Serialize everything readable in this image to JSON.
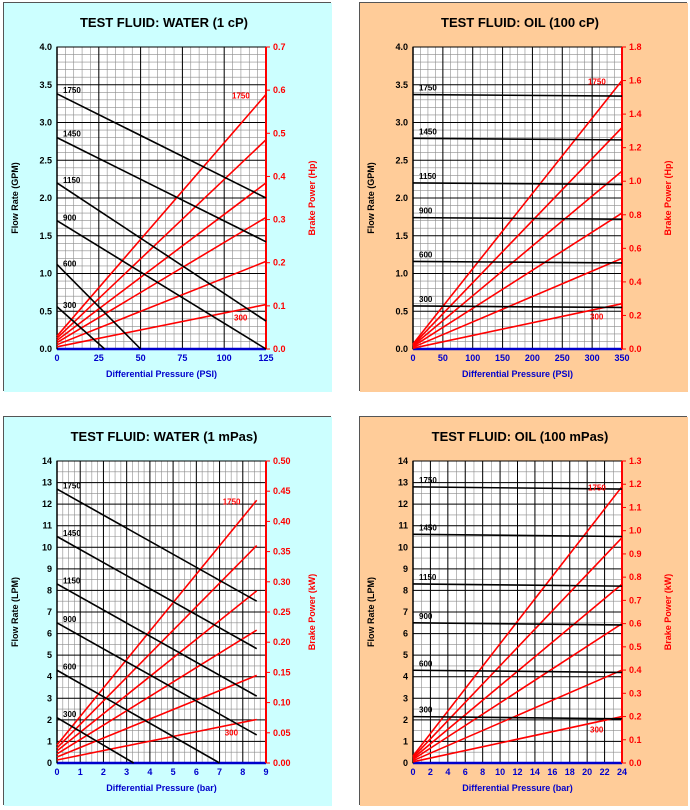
{
  "colors": {
    "water_bg": "#ccffff",
    "oil_bg": "#ffcc99",
    "flow_line": "#000000",
    "power_line": "#ff0000",
    "grid_minor": "#8c8c8c",
    "grid_major": "#000000"
  },
  "chart_data": [
    {
      "type": "line",
      "title": "TEST FLUID:  WATER (1 cP)",
      "xlabel": "Differential Pressure (PSI)",
      "ylabel": "Flow Rate (GPM)",
      "y2label": "Brake Power (Hp)",
      "xlim": [
        0,
        125
      ],
      "xticks": [
        0,
        25,
        50,
        75,
        100,
        125
      ],
      "ylim": [
        0,
        4.0
      ],
      "yticks": [
        "0.0",
        "0.5",
        "1.0",
        "1.5",
        "2.0",
        "2.5",
        "3.0",
        "3.5",
        "4.0"
      ],
      "y2lim": [
        0,
        0.7
      ],
      "y2ticks": [
        "0.0",
        "0.1",
        "0.2",
        "0.3",
        "0.4",
        "0.5",
        "0.6",
        "0.7"
      ],
      "grid": true,
      "background": "water",
      "flow_series": [
        {
          "rpm": "300",
          "points": [
            [
              0,
              0.56
            ],
            [
              28.5,
              0
            ]
          ]
        },
        {
          "rpm": "600",
          "points": [
            [
              0,
              1.12
            ],
            [
              50,
              0
            ]
          ]
        },
        {
          "rpm": "900",
          "points": [
            [
              0,
              1.7
            ],
            [
              125,
              0
            ]
          ]
        },
        {
          "rpm": "1150",
          "points": [
            [
              0,
              2.2
            ],
            [
              125,
              0.37
            ]
          ]
        },
        {
          "rpm": "1450",
          "points": [
            [
              0,
              2.8
            ],
            [
              125,
              1.42
            ]
          ]
        },
        {
          "rpm": "1750",
          "points": [
            [
              0,
              3.38
            ],
            [
              125,
              2.0
            ]
          ]
        }
      ],
      "power_series": [
        {
          "rpm": "300",
          "points": [
            [
              0,
              0.005
            ],
            [
              125,
              0.103
            ]
          ]
        },
        {
          "rpm": "600",
          "points": [
            [
              0,
              0.01
            ],
            [
              125,
              0.203
            ]
          ]
        },
        {
          "rpm": "900",
          "points": [
            [
              0,
              0.015
            ],
            [
              125,
              0.305
            ]
          ]
        },
        {
          "rpm": "1150",
          "points": [
            [
              0,
              0.02
            ],
            [
              125,
              0.385
            ]
          ]
        },
        {
          "rpm": "1450",
          "points": [
            [
              0,
              0.025
            ],
            [
              125,
              0.485
            ]
          ]
        },
        {
          "rpm": "1750",
          "points": [
            [
              0,
              0.03
            ],
            [
              125,
              0.59
            ]
          ]
        }
      ]
    },
    {
      "type": "line",
      "title": "TEST FLUID:  OIL (100 cP)",
      "xlabel": "Differential Pressure (PSI)",
      "ylabel": "Flow Rate (GPM)",
      "y2label": "Brake Power (Hp)",
      "xlim": [
        0,
        350
      ],
      "xticks": [
        0,
        50,
        100,
        150,
        200,
        250,
        300,
        350
      ],
      "ylim": [
        0,
        4.0
      ],
      "yticks": [
        "0.0",
        "0.5",
        "1.0",
        "1.5",
        "2.0",
        "2.5",
        "3.0",
        "3.5",
        "4.0"
      ],
      "y2lim": [
        0,
        1.8
      ],
      "y2ticks": [
        "0.0",
        "0.2",
        "0.4",
        "0.6",
        "0.8",
        "1.0",
        "1.2",
        "1.4",
        "1.6",
        "1.8"
      ],
      "grid": true,
      "background": "oil",
      "flow_series": [
        {
          "rpm": "300",
          "points": [
            [
              0,
              0.57
            ],
            [
              350,
              0.55
            ]
          ]
        },
        {
          "rpm": "600",
          "points": [
            [
              0,
              1.16
            ],
            [
              350,
              1.14
            ]
          ]
        },
        {
          "rpm": "900",
          "points": [
            [
              0,
              1.74
            ],
            [
              350,
              1.72
            ]
          ]
        },
        {
          "rpm": "1150",
          "points": [
            [
              0,
              2.2
            ],
            [
              350,
              2.18
            ]
          ]
        },
        {
          "rpm": "1450",
          "points": [
            [
              0,
              2.79
            ],
            [
              350,
              2.77
            ]
          ]
        },
        {
          "rpm": "1750",
          "points": [
            [
              0,
              3.37
            ],
            [
              350,
              3.35
            ]
          ]
        }
      ],
      "power_series": [
        {
          "rpm": "300",
          "points": [
            [
              0,
              0.005
            ],
            [
              350,
              0.27
            ]
          ]
        },
        {
          "rpm": "600",
          "points": [
            [
              0,
              0.01
            ],
            [
              350,
              0.54
            ]
          ]
        },
        {
          "rpm": "900",
          "points": [
            [
              0,
              0.015
            ],
            [
              350,
              0.81
            ]
          ]
        },
        {
          "rpm": "1150",
          "points": [
            [
              0,
              0.02
            ],
            [
              350,
              1.06
            ]
          ]
        },
        {
          "rpm": "1450",
          "points": [
            [
              0,
              0.025
            ],
            [
              350,
              1.32
            ]
          ]
        },
        {
          "rpm": "1750",
          "points": [
            [
              0,
              0.03
            ],
            [
              350,
              1.6
            ]
          ]
        }
      ]
    },
    {
      "type": "line",
      "title": "TEST FLUID:  WATER (1 mPas)",
      "xlabel": "Differential Pressure (bar)",
      "ylabel": "Flow Rate (LPM)",
      "y2label": "Brake Power (kW)",
      "xlim": [
        0,
        9
      ],
      "xticks": [
        0,
        1,
        2,
        3,
        4,
        5,
        6,
        7,
        8,
        9
      ],
      "ylim": [
        0,
        14
      ],
      "yticks": [
        "0",
        "1",
        "2",
        "3",
        "4",
        "5",
        "6",
        "7",
        "8",
        "9",
        "10",
        "11",
        "12",
        "13",
        "14"
      ],
      "y2lim": [
        0,
        0.5
      ],
      "y2ticks": [
        "0.00",
        "0.05",
        "0.10",
        "0.15",
        "0.20",
        "0.25",
        "0.30",
        "0.35",
        "0.40",
        "0.45",
        "0.50"
      ],
      "grid": true,
      "background": "water",
      "flow_series": [
        {
          "rpm": "300",
          "points": [
            [
              0,
              2.1
            ],
            [
              3.3,
              0
            ]
          ]
        },
        {
          "rpm": "600",
          "points": [
            [
              0,
              4.3
            ],
            [
              7,
              0
            ]
          ]
        },
        {
          "rpm": "900",
          "points": [
            [
              0,
              6.5
            ],
            [
              8.6,
              1.3
            ]
          ]
        },
        {
          "rpm": "1150",
          "points": [
            [
              0,
              8.3
            ],
            [
              8.6,
              3.1
            ]
          ]
        },
        {
          "rpm": "1450",
          "points": [
            [
              0,
              10.5
            ],
            [
              8.6,
              5.3
            ]
          ]
        },
        {
          "rpm": "1750",
          "points": [
            [
              0,
              12.7
            ],
            [
              8.6,
              7.5
            ]
          ]
        }
      ],
      "power_series": [
        {
          "rpm": "300",
          "points": [
            [
              0,
              0.005
            ],
            [
              8.6,
              0.072
            ]
          ]
        },
        {
          "rpm": "600",
          "points": [
            [
              0,
              0.01
            ],
            [
              8.6,
              0.145
            ]
          ]
        },
        {
          "rpm": "900",
          "points": [
            [
              0,
              0.015
            ],
            [
              8.6,
              0.22
            ]
          ]
        },
        {
          "rpm": "1150",
          "points": [
            [
              0,
              0.02
            ],
            [
              8.6,
              0.285
            ]
          ]
        },
        {
          "rpm": "1450",
          "points": [
            [
              0,
              0.025
            ],
            [
              8.6,
              0.36
            ]
          ]
        },
        {
          "rpm": "1750",
          "points": [
            [
              0,
              0.03
            ],
            [
              8.6,
              0.435
            ]
          ]
        }
      ]
    },
    {
      "type": "line",
      "title": "TEST FLUID:  OIL (100 mPas)",
      "xlabel": "Differential Pressure (bar)",
      "ylabel": "Flow Rate (LPM)",
      "y2label": "Brake Power (kW)",
      "xlim": [
        0,
        24
      ],
      "xticks": [
        0,
        2,
        4,
        6,
        8,
        10,
        12,
        14,
        16,
        18,
        20,
        22,
        24
      ],
      "ylim": [
        0,
        14
      ],
      "yticks": [
        "0",
        "1",
        "2",
        "3",
        "4",
        "5",
        "6",
        "7",
        "8",
        "9",
        "10",
        "11",
        "12",
        "13",
        "14"
      ],
      "y2lim": [
        0,
        1.3
      ],
      "y2ticks": [
        "0.0",
        "0.1",
        "0.2",
        "0.3",
        "0.4",
        "0.5",
        "0.6",
        "0.7",
        "0.8",
        "0.9",
        "1.0",
        "1.1",
        "1.2",
        "1.3"
      ],
      "grid": true,
      "background": "oil",
      "flow_series": [
        {
          "rpm": "300",
          "points": [
            [
              0,
              2.15
            ],
            [
              24,
              2.05
            ]
          ]
        },
        {
          "rpm": "600",
          "points": [
            [
              0,
              4.3
            ],
            [
              24,
              4.2
            ]
          ]
        },
        {
          "rpm": "900",
          "points": [
            [
              0,
              6.5
            ],
            [
              24,
              6.4
            ]
          ]
        },
        {
          "rpm": "1150",
          "points": [
            [
              0,
              8.3
            ],
            [
              24,
              8.2
            ]
          ]
        },
        {
          "rpm": "1450",
          "points": [
            [
              0,
              10.6
            ],
            [
              24,
              10.5
            ]
          ]
        },
        {
          "rpm": "1750",
          "points": [
            [
              0,
              12.8
            ],
            [
              24,
              12.7
            ]
          ]
        }
      ],
      "power_series": [
        {
          "rpm": "300",
          "points": [
            [
              0,
              0.005
            ],
            [
              24,
              0.2
            ]
          ]
        },
        {
          "rpm": "600",
          "points": [
            [
              0,
              0.01
            ],
            [
              24,
              0.4
            ]
          ]
        },
        {
          "rpm": "900",
          "points": [
            [
              0,
              0.015
            ],
            [
              24,
              0.6
            ]
          ]
        },
        {
          "rpm": "1150",
          "points": [
            [
              0,
              0.02
            ],
            [
              24,
              0.77
            ]
          ]
        },
        {
          "rpm": "1450",
          "points": [
            [
              0,
              0.025
            ],
            [
              24,
              0.97
            ]
          ]
        },
        {
          "rpm": "1750",
          "points": [
            [
              0,
              0.03
            ],
            [
              24,
              1.19
            ]
          ]
        }
      ]
    }
  ]
}
